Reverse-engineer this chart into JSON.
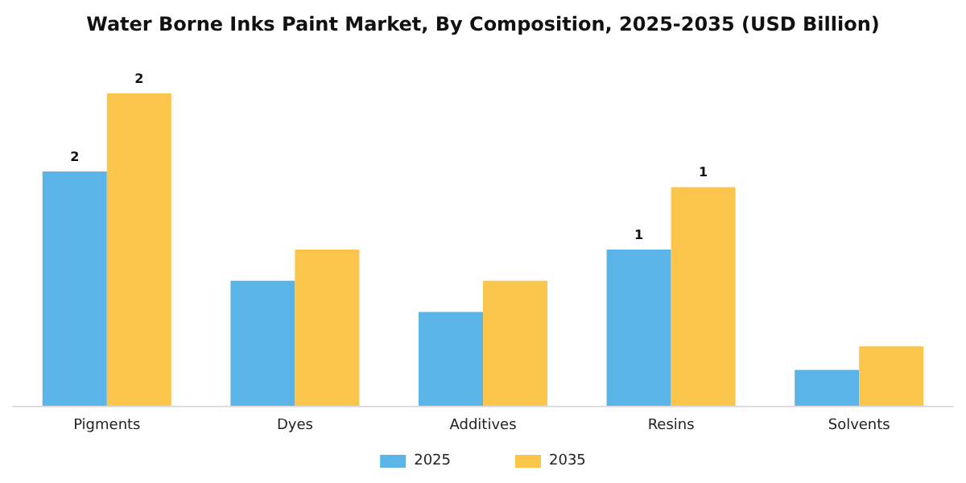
{
  "chart_data": {
    "type": "bar",
    "title": "Water Borne Inks Paint Market, By Composition, 2025-2035 (USD Billion)",
    "legend": "bottom",
    "tick_labels": "x",
    "categories": [
      "Pigments",
      "Dyes",
      "Additives",
      "Resins",
      "Solvents"
    ],
    "series": [
      {
        "name": "2025",
        "color": "#5ab4e8",
        "values": [
          1.5,
          0.8,
          0.6,
          1.0,
          0.23
        ],
        "value_labels": [
          "2",
          null,
          null,
          "1",
          null
        ]
      },
      {
        "name": "2035",
        "color": "#fbc54c",
        "values": [
          2.0,
          1.0,
          0.8,
          1.4,
          0.38
        ],
        "value_labels": [
          "2",
          null,
          null,
          "1",
          null
        ]
      }
    ]
  }
}
